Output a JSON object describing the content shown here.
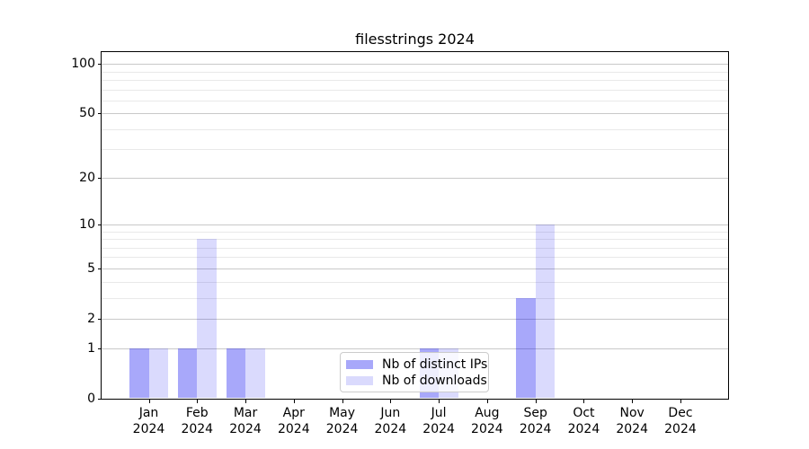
{
  "chart_data": {
    "type": "bar",
    "title": "filesstrings 2024",
    "categories": [
      "Jan 2024",
      "Feb 2024",
      "Mar 2024",
      "Apr 2024",
      "May 2024",
      "Jun 2024",
      "Jul 2024",
      "Aug 2024",
      "Sep 2024",
      "Oct 2024",
      "Nov 2024",
      "Dec 2024"
    ],
    "month_labels": [
      "Jan",
      "Feb",
      "Mar",
      "Apr",
      "May",
      "Jun",
      "Jul",
      "Aug",
      "Sep",
      "Oct",
      "Nov",
      "Dec"
    ],
    "year_label": "2024",
    "series": [
      {
        "name": "Nb of distinct IPs",
        "color": "#0000f057",
        "values": [
          1,
          1,
          1,
          0,
          0,
          0,
          1,
          0,
          3,
          0,
          0,
          0
        ]
      },
      {
        "name": "Nb of downloads",
        "color": "#0000f025",
        "values": [
          1,
          8,
          1,
          0,
          0,
          0,
          1,
          0,
          10,
          0,
          0,
          0
        ]
      }
    ],
    "yscale": "log1p",
    "ylim": [
      0,
      118
    ],
    "yticks": [
      0,
      1,
      2,
      5,
      10,
      20,
      50,
      100
    ],
    "minor_gridlines": [
      3,
      4,
      6,
      7,
      8,
      9,
      30,
      40,
      60,
      70,
      80,
      90
    ],
    "grid": true,
    "legend_position": "lower center",
    "colors": {
      "axis": "#000000",
      "major_grid": "#c9c9c9",
      "minor_grid": "#e9e9e9",
      "background": "#ffffff"
    }
  }
}
